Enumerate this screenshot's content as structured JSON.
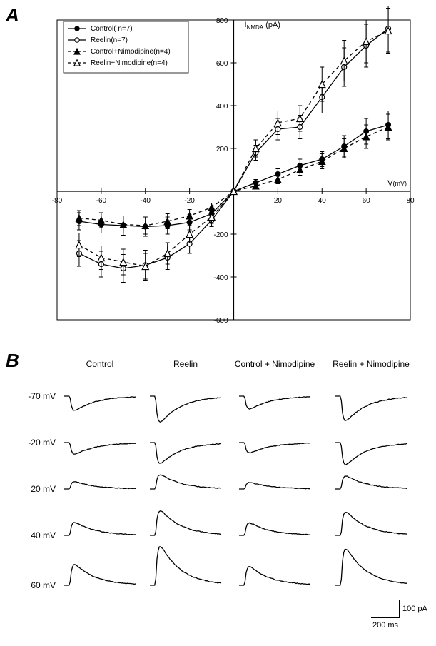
{
  "panelA": {
    "label": "A",
    "chart": {
      "type": "line-scatter",
      "y_axis_label": "I",
      "y_axis_sub": "NMDA",
      "y_axis_unit": "(pA)",
      "x_axis_label": "V",
      "x_axis_unit": "(mV)",
      "xlim": [
        -80,
        80
      ],
      "ylim": [
        -600,
        800
      ],
      "xticks": [
        -80,
        -60,
        -40,
        -20,
        20,
        40,
        60,
        80
      ],
      "yticks": [
        -600,
        -400,
        -200,
        200,
        400,
        600,
        800
      ],
      "background_color": "#ffffff",
      "axis_color": "#000000",
      "frame_color": "#000000",
      "label_fontsize": 11,
      "tick_fontsize": 10,
      "series": [
        {
          "name": "Control( n=7)",
          "marker": "circle-filled",
          "line": "solid",
          "color": "#000000",
          "x": [
            -70,
            -60,
            -50,
            -40,
            -30,
            -20,
            -10,
            0,
            10,
            20,
            30,
            40,
            50,
            60,
            70
          ],
          "y": [
            -140,
            -155,
            -160,
            -165,
            -160,
            -145,
            -105,
            0,
            40,
            80,
            120,
            150,
            210,
            280,
            310
          ],
          "err": [
            40,
            40,
            45,
            45,
            40,
            35,
            25,
            0,
            15,
            25,
            30,
            35,
            50,
            60,
            65
          ]
        },
        {
          "name": "Reelin(n=7)",
          "marker": "circle-open",
          "line": "solid",
          "color": "#000000",
          "x": [
            -70,
            -60,
            -50,
            -40,
            -30,
            -20,
            -10,
            0,
            10,
            20,
            30,
            40,
            50,
            60,
            70
          ],
          "y": [
            -290,
            -340,
            -360,
            -345,
            -310,
            -245,
            -135,
            0,
            180,
            290,
            300,
            440,
            580,
            680,
            760
          ],
          "err": [
            60,
            60,
            65,
            70,
            55,
            45,
            30,
            0,
            35,
            50,
            55,
            75,
            90,
            100,
            110
          ]
        },
        {
          "name": "Control+Nimodipine(n=4)",
          "marker": "triangle-filled",
          "line": "dashed",
          "color": "#000000",
          "x": [
            -70,
            -60,
            -50,
            -40,
            -30,
            -20,
            -10,
            0,
            10,
            20,
            30,
            40,
            50,
            60,
            70
          ],
          "y": [
            -125,
            -135,
            -155,
            -160,
            -140,
            -115,
            -75,
            0,
            25,
            55,
            100,
            140,
            200,
            255,
            300
          ],
          "err": [
            35,
            35,
            40,
            40,
            35,
            30,
            20,
            0,
            15,
            20,
            25,
            35,
            45,
            55,
            60
          ]
        },
        {
          "name": "Reelin+Nimodipine(n=4)",
          "marker": "triangle-open",
          "line": "dashed",
          "color": "#000000",
          "x": [
            -70,
            -60,
            -50,
            -40,
            -30,
            -20,
            -10,
            0,
            10,
            20,
            30,
            40,
            50,
            60,
            70
          ],
          "y": [
            -250,
            -310,
            -330,
            -350,
            -290,
            -200,
            -120,
            0,
            200,
            320,
            340,
            500,
            610,
            700,
            750
          ],
          "err": [
            55,
            55,
            60,
            60,
            50,
            40,
            30,
            0,
            40,
            55,
            60,
            80,
            95,
            100,
            105
          ]
        }
      ],
      "legend": {
        "pos": "top-left",
        "fontsize": 10,
        "border_color": "#000000"
      }
    }
  },
  "panelB": {
    "label": "B",
    "columns": [
      "Control",
      "Reelin",
      "Control + Nimodipine",
      "Reelin + Nimodipine"
    ],
    "rows": [
      "-70 mV",
      "-20 mV",
      "20 mV",
      "40 mV",
      "60 mV"
    ],
    "row_fontsize": 12,
    "col_fontsize": 12,
    "scale_bar": {
      "x_label": "200 ms",
      "y_label": "100 pA",
      "color": "#000000",
      "fontsize": 11
    },
    "trace_color": "#000000",
    "trace_linewidth": 1.3,
    "amplitudes": {
      "Control": [
        -0.55,
        -0.45,
        0.28,
        0.5,
        0.8
      ],
      "Reelin": [
        -1.0,
        -0.8,
        0.55,
        0.95,
        1.5
      ],
      "Control + Nimodipine": [
        -0.5,
        -0.4,
        0.25,
        0.48,
        0.72
      ],
      "Reelin + Nimodipine": [
        -0.95,
        -0.85,
        0.5,
        0.9,
        1.4
      ]
    }
  }
}
